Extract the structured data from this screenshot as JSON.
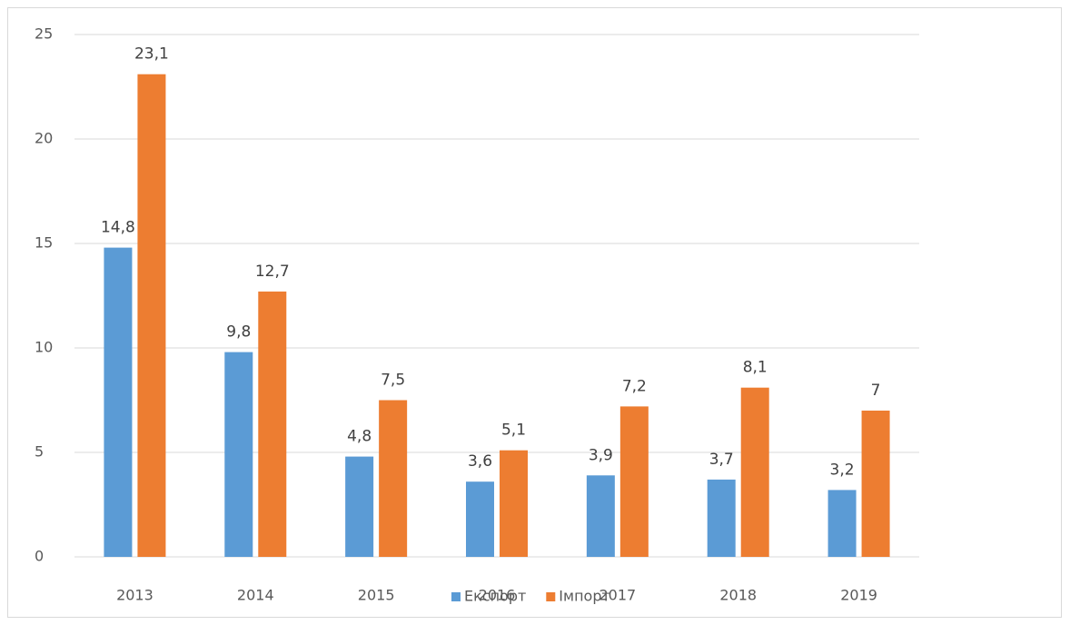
{
  "chart_data": {
    "type": "bar",
    "categories": [
      "2013",
      "2014",
      "2015",
      "2016",
      "2017",
      "2018",
      "2019"
    ],
    "series": [
      {
        "name": "Експорт",
        "color": "#5b9bd5",
        "values": [
          14.8,
          9.8,
          4.8,
          3.6,
          3.9,
          3.7,
          3.2
        ],
        "value_labels": [
          "14,8",
          "9,8",
          "4,8",
          "3,6",
          "3,9",
          "3,7",
          "3,2"
        ]
      },
      {
        "name": "Імпорт",
        "color": "#ed7d31",
        "values": [
          23.1,
          12.7,
          7.5,
          5.1,
          7.2,
          8.1,
          7
        ],
        "value_labels": [
          "23,1",
          "12,7",
          "7,5",
          "5,1",
          "7,2",
          "8,1",
          "7"
        ]
      }
    ],
    "ylim": [
      0,
      25
    ],
    "yticks": [
      0,
      5,
      10,
      15,
      20,
      25
    ],
    "grid": true,
    "legend": "bottom"
  }
}
